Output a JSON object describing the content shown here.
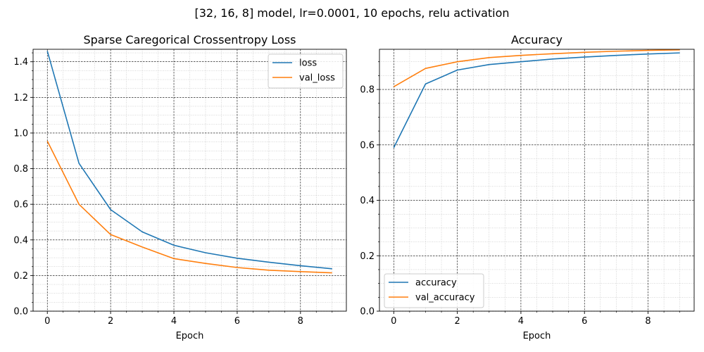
{
  "figure": {
    "suptitle": "[32, 16, 8] model, lr=0.0001, 10 epochs, relu activation"
  },
  "chart_data": [
    {
      "type": "line",
      "title": "Sparse Caregorical Crossentropy Loss",
      "xlabel": "Epoch",
      "ylabel": "",
      "x": [
        0,
        1,
        2,
        3,
        4,
        5,
        6,
        7,
        8,
        9
      ],
      "xlim": [
        -0.45,
        9.45
      ],
      "ylim": [
        0.0,
        1.47
      ],
      "xticks": [
        0,
        2,
        4,
        6,
        8
      ],
      "xtick_labels": [
        "0",
        "2",
        "4",
        "6",
        "8"
      ],
      "yticks": [
        0.0,
        0.2,
        0.4,
        0.6,
        0.8,
        1.0,
        1.2,
        1.4
      ],
      "ytick_labels": [
        "0.0",
        "0.2",
        "0.4",
        "0.6",
        "0.8",
        "1.0",
        "1.2",
        "1.4"
      ],
      "grid": true,
      "legend_position": "upper right",
      "series": [
        {
          "name": "loss",
          "color": "#1f77b4",
          "values": [
            1.46,
            0.83,
            0.57,
            0.445,
            0.37,
            0.328,
            0.297,
            0.275,
            0.255,
            0.238
          ]
        },
        {
          "name": "val_loss",
          "color": "#ff7f0e",
          "values": [
            0.955,
            0.6,
            0.43,
            0.36,
            0.295,
            0.268,
            0.245,
            0.23,
            0.222,
            0.215
          ]
        }
      ]
    },
    {
      "type": "line",
      "title": "Accuracy",
      "xlabel": "Epoch",
      "ylabel": "",
      "x": [
        0,
        1,
        2,
        3,
        4,
        5,
        6,
        7,
        8,
        9
      ],
      "xlim": [
        -0.45,
        9.45
      ],
      "ylim": [
        0.0,
        0.945
      ],
      "xticks": [
        0,
        2,
        4,
        6,
        8
      ],
      "xtick_labels": [
        "0",
        "2",
        "4",
        "6",
        "8"
      ],
      "yticks": [
        0.0,
        0.2,
        0.4,
        0.6,
        0.8
      ],
      "ytick_labels": [
        "0.0",
        "0.2",
        "0.4",
        "0.6",
        "0.8"
      ],
      "grid": true,
      "legend_position": "lower left",
      "series": [
        {
          "name": "accuracy",
          "color": "#1f77b4",
          "values": [
            0.59,
            0.82,
            0.87,
            0.89,
            0.9,
            0.91,
            0.917,
            0.923,
            0.928,
            0.932
          ]
        },
        {
          "name": "val_accuracy",
          "color": "#ff7f0e",
          "values": [
            0.81,
            0.876,
            0.9,
            0.915,
            0.923,
            0.929,
            0.934,
            0.938,
            0.941,
            0.943
          ]
        }
      ]
    }
  ]
}
